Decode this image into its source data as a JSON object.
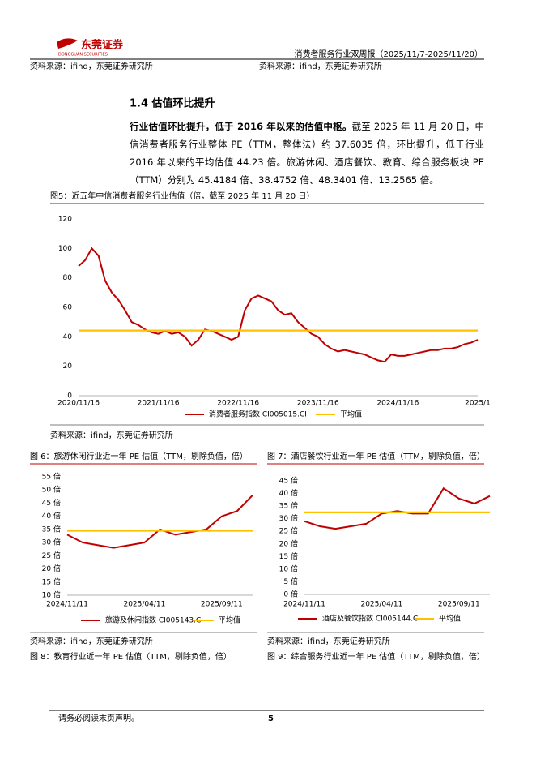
{
  "header": {
    "logo_text": "东莞证券",
    "logo_subtext": "DONGGUAN SECURITIES",
    "report_title": "消费者服务行业双周报（2025/11/7-2025/11/20）"
  },
  "top_sources": [
    "资料来源：ifind，东莞证券研究所",
    "资料来源：ifind，东莞证券研究所"
  ],
  "section_title": "1.4 估值环比提升",
  "paragraph": {
    "lead": "行业估值环比提升，低于 2016 年以来的估值中枢。",
    "body": "截至 2025 年 11 月 20 日，中信消费者服务行业整体 PE（TTM，整体法）约 37.6035 倍，环比提升，低于行业 2016 年以来的平均估值 44.23 倍。旅游休闲、酒店餐饮、教育、综合服务板块 PE（TTM）分别为 45.4184 倍、38.4752 倍、48.3401 倍、13.2565 倍。"
  },
  "chart_data": [
    {
      "type": "line",
      "title": "图5：近五年中信消费者服务行业估值（倍，截至 2025 年 11 月 20 日）",
      "source": "资料来源：ifind，东莞证券研究所",
      "categories": [
        "2020/11/16",
        null,
        null,
        null,
        null,
        null,
        null,
        null,
        null,
        null,
        null,
        null,
        "2021/11/16",
        null,
        null,
        null,
        null,
        null,
        null,
        null,
        null,
        null,
        null,
        null,
        "2022/11/16",
        null,
        null,
        null,
        null,
        null,
        null,
        null,
        null,
        null,
        null,
        null,
        "2023/11/16",
        null,
        null,
        null,
        null,
        null,
        null,
        null,
        null,
        null,
        null,
        null,
        "2024/11/16",
        null,
        null,
        null,
        null,
        null,
        null,
        null,
        null,
        null,
        null,
        null,
        "2025/1"
      ],
      "series": [
        {
          "name": "消费者服务指数 CI005015.CI",
          "color": "#c00000",
          "values": [
            88,
            92,
            100,
            95,
            78,
            70,
            65,
            58,
            50,
            48,
            45,
            43,
            42,
            44,
            42,
            43,
            40,
            34,
            38,
            45,
            44,
            42,
            40,
            38,
            40,
            58,
            66,
            68,
            66,
            64,
            58,
            55,
            56,
            50,
            46,
            42,
            40,
            35,
            32,
            30,
            31,
            30,
            29,
            28,
            26,
            24,
            23,
            28,
            27,
            27,
            28,
            29,
            30,
            31,
            31,
            32,
            32,
            33,
            35,
            36,
            38
          ]
        },
        {
          "name": "平均值",
          "color": "#ffc000",
          "values": [
            44.23,
            44.23,
            44.23,
            44.23,
            44.23,
            44.23,
            44.23,
            44.23,
            44.23,
            44.23,
            44.23,
            44.23,
            44.23,
            44.23,
            44.23,
            44.23,
            44.23,
            44.23,
            44.23,
            44.23,
            44.23,
            44.23,
            44.23,
            44.23,
            44.23,
            44.23,
            44.23,
            44.23,
            44.23,
            44.23,
            44.23,
            44.23,
            44.23,
            44.23,
            44.23,
            44.23,
            44.23,
            44.23,
            44.23,
            44.23,
            44.23,
            44.23,
            44.23,
            44.23,
            44.23,
            44.23,
            44.23,
            44.23,
            44.23,
            44.23,
            44.23,
            44.23,
            44.23,
            44.23,
            44.23,
            44.23,
            44.23,
            44.23,
            44.23,
            44.23,
            44.23
          ]
        }
      ],
      "ylim": [
        0,
        120
      ],
      "yticks": [
        0,
        20,
        40,
        60,
        80,
        100,
        120
      ],
      "legend": "bottom"
    },
    {
      "type": "line",
      "title": "图 6：旅游休闲行业近一年 PE 估值（TTM，剔除负值，倍）",
      "source": "资料来源：ifind，东莞证券研究所",
      "categories": [
        "2024/11/11",
        null,
        null,
        null,
        null,
        "2025/04/11",
        null,
        null,
        null,
        null,
        "2025/09/11",
        null,
        null
      ],
      "series": [
        {
          "name": "旅游及休闲指数 CI005143.CI",
          "color": "#c00000",
          "values": [
            33,
            30,
            29,
            28,
            29,
            30,
            35,
            33,
            34,
            35,
            40,
            42,
            48
          ]
        },
        {
          "name": "平均值",
          "color": "#ffc000",
          "values": [
            34.5,
            34.5,
            34.5,
            34.5,
            34.5,
            34.5,
            34.5,
            34.5,
            34.5,
            34.5,
            34.5,
            34.5,
            34.5
          ]
        }
      ],
      "ylim": [
        10,
        55
      ],
      "yticks": [
        {
          "value": 10,
          "label": "10 倍"
        },
        {
          "value": 15,
          "label": "15 倍"
        },
        {
          "value": 20,
          "label": "20 倍"
        },
        {
          "value": 25,
          "label": "25 倍"
        },
        {
          "value": 30,
          "label": "30 倍"
        },
        {
          "value": 35,
          "label": "35 倍"
        },
        {
          "value": 40,
          "label": "40 倍"
        },
        {
          "value": 45,
          "label": "45 倍"
        },
        {
          "value": 50,
          "label": "50 倍"
        },
        {
          "value": 55,
          "label": "55 倍"
        }
      ],
      "legend": "bottom"
    },
    {
      "type": "line",
      "title": "图 7：酒店餐饮行业近一年 PE 估值（TTM，剔除负值，倍）",
      "source": "资料来源：ifind，东莞证券研究所",
      "categories": [
        "2024/11/11",
        null,
        null,
        null,
        null,
        "2025/04/11",
        null,
        null,
        null,
        null,
        "2025/09/11",
        null,
        null
      ],
      "series": [
        {
          "name": "酒店及餐饮指数 CI005144.CI",
          "color": "#c00000",
          "values": [
            29,
            27,
            26,
            27,
            28,
            32,
            33,
            32,
            32,
            42,
            38,
            36,
            39
          ]
        },
        {
          "name": "平均值",
          "color": "#ffc000",
          "values": [
            32.5,
            32.5,
            32.5,
            32.5,
            32.5,
            32.5,
            32.5,
            32.5,
            32.5,
            32.5,
            32.5,
            32.5,
            32.5
          ]
        }
      ],
      "ylim": [
        0,
        45
      ],
      "yticks": [
        {
          "value": 0,
          "label": "0 倍"
        },
        {
          "value": 5,
          "label": "5 倍"
        },
        {
          "value": 10,
          "label": "10 倍"
        },
        {
          "value": 15,
          "label": "15 倍"
        },
        {
          "value": 20,
          "label": "20 倍"
        },
        {
          "value": 25,
          "label": "25 倍"
        },
        {
          "value": 30,
          "label": "30 倍"
        },
        {
          "value": 35,
          "label": "35 倍"
        },
        {
          "value": 40,
          "label": "40 倍"
        },
        {
          "value": 45,
          "label": "45 倍"
        }
      ],
      "legend": "bottom"
    }
  ],
  "captions": [
    "图 8：教育行业近一年 PE 估值（TTM，剔除负值，倍）",
    "图 9：综合服务行业近一年 PE 估值（TTM，剔除负值，倍）"
  ],
  "footer": {
    "disclaimer": "请务必阅读末页声明。",
    "page_number": "5"
  }
}
